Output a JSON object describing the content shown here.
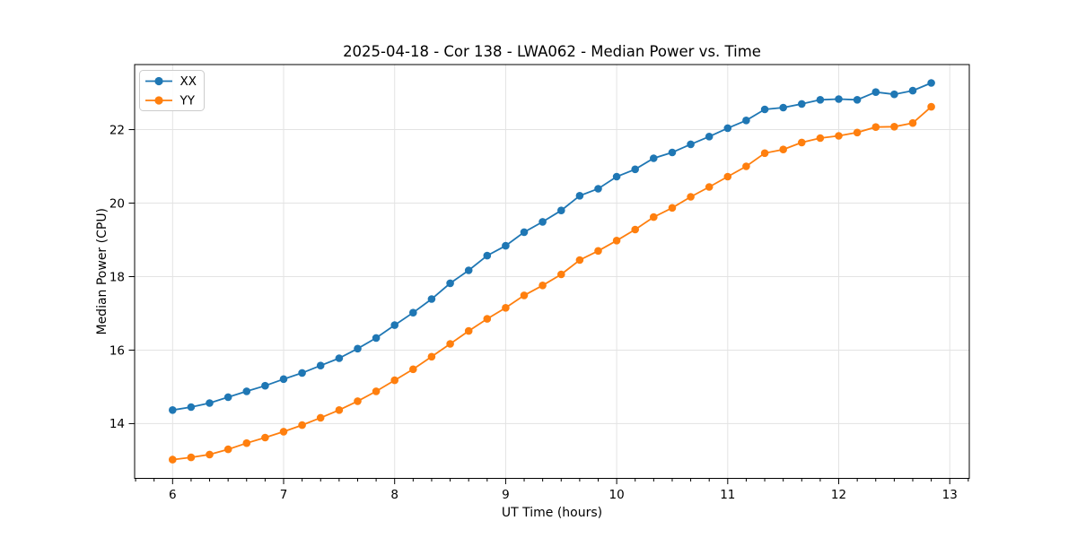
{
  "chart_data": {
    "type": "line",
    "title": "2025-04-18 - Cor 138 - LWA062 - Median Power vs. Time",
    "xlabel": "UT Time (hours)",
    "ylabel": "Median Power (CPU)",
    "xlim": [
      5.658,
      13.176
    ],
    "ylim": [
      12.51,
      23.77
    ],
    "xticks": [
      6,
      7,
      8,
      9,
      10,
      11,
      12,
      13
    ],
    "yticks": [
      14,
      16,
      18,
      20,
      22
    ],
    "x_minor_ticks_per_hour": 6,
    "grid": true,
    "legend_position": "upper-left",
    "x": [
      6.0,
      6.1667,
      6.3333,
      6.5,
      6.6667,
      6.8333,
      7.0,
      7.1667,
      7.3333,
      7.5,
      7.6667,
      7.8333,
      8.0,
      8.1667,
      8.3333,
      8.5,
      8.6667,
      8.8333,
      9.0,
      9.1667,
      9.3333,
      9.5,
      9.6667,
      9.8333,
      10.0,
      10.1667,
      10.3333,
      10.5,
      10.6667,
      10.8333,
      11.0,
      11.1667,
      11.3333,
      11.5,
      11.6667,
      11.8333,
      12.0,
      12.1667,
      12.3333,
      12.5,
      12.6667,
      12.8333
    ],
    "series": [
      {
        "name": "XX",
        "color": "#1f77b4",
        "values": [
          14.37,
          14.45,
          14.56,
          14.72,
          14.88,
          15.03,
          15.21,
          15.38,
          15.58,
          15.78,
          16.04,
          16.33,
          16.68,
          17.02,
          17.39,
          17.82,
          18.17,
          18.57,
          18.84,
          19.21,
          19.49,
          19.8,
          20.2,
          20.39,
          20.72,
          20.92,
          21.22,
          21.38,
          21.6,
          21.81,
          22.04,
          22.25,
          22.55,
          22.6,
          22.7,
          22.81,
          22.83,
          22.81,
          23.02,
          22.96,
          23.06,
          23.27
        ]
      },
      {
        "name": "YY",
        "color": "#ff7f0e",
        "values": [
          13.02,
          13.08,
          13.16,
          13.3,
          13.47,
          13.62,
          13.78,
          13.96,
          14.16,
          14.37,
          14.61,
          14.88,
          15.18,
          15.48,
          15.82,
          16.17,
          16.52,
          16.85,
          17.15,
          17.49,
          17.76,
          18.06,
          18.45,
          18.7,
          18.98,
          19.28,
          19.62,
          19.87,
          20.17,
          20.44,
          20.72,
          21.0,
          21.36,
          21.46,
          21.65,
          21.77,
          21.83,
          21.92,
          22.07,
          22.08,
          22.18,
          22.62
        ]
      }
    ]
  }
}
